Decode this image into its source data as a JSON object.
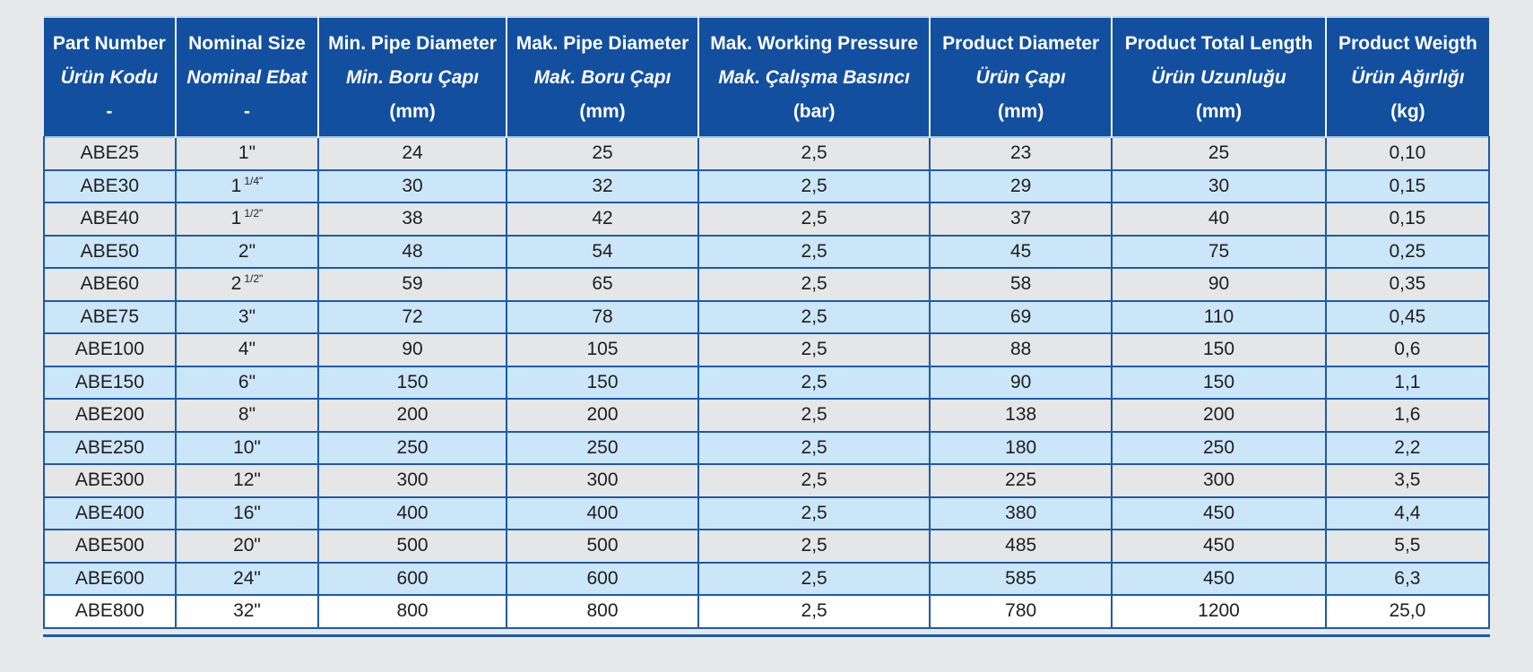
{
  "colors": {
    "page_background": "#e7e8ea",
    "header_background": "#134f9f",
    "header_text": "#ffffff",
    "cell_border": "#1d5aa9",
    "header_divider": "#eef4fb",
    "light_divider_under_header": "#9fc7ec",
    "row_gray": "#e5e6e8",
    "row_light_blue": "#cbe6f8",
    "row_white": "#ffffff",
    "body_text": "#1f1f1f"
  },
  "table": {
    "layout": {
      "col_widths_pct": [
        9.1,
        9.9,
        13.0,
        13.3,
        16.0,
        12.6,
        14.8,
        11.3
      ]
    },
    "header": {
      "columns": [
        {
          "en": "Part Number",
          "tr": "Ürün Kodu",
          "unit": "-"
        },
        {
          "en": "Nominal Size",
          "tr": "Nominal Ebat",
          "unit": "-"
        },
        {
          "en": "Min. Pipe Diameter",
          "tr": "Min. Boru Çapı",
          "unit": "(mm)"
        },
        {
          "en": "Mak. Pipe Diameter",
          "tr": "Mak. Boru Çapı",
          "unit": "(mm)"
        },
        {
          "en": "Mak. Working Pressure",
          "tr": "Mak. Çalışma Basıncı",
          "unit": "(bar)"
        },
        {
          "en": "Product Diameter",
          "tr": "Ürün Çapı",
          "unit": "(mm)"
        },
        {
          "en": "Product Total Length",
          "tr": "Ürün Uzunluğu",
          "unit": "(mm)"
        },
        {
          "en": "Product Weigth",
          "tr": "Ürün Ağırlığı",
          "unit": "(kg)"
        }
      ]
    },
    "rows": [
      {
        "part": "ABE25",
        "nominal": {
          "base": "1\"",
          "sup": ""
        },
        "min_d": "24",
        "max_d": "25",
        "pressure": "2,5",
        "prod_d": "23",
        "length": "25",
        "weight": "0,10",
        "bg": "gray"
      },
      {
        "part": "ABE30",
        "nominal": {
          "base": "1",
          "sup": "1/4\""
        },
        "min_d": "30",
        "max_d": "32",
        "pressure": "2,5",
        "prod_d": "29",
        "length": "30",
        "weight": "0,15",
        "bg": "blue"
      },
      {
        "part": "ABE40",
        "nominal": {
          "base": "1",
          "sup": "1/2\""
        },
        "min_d": "38",
        "max_d": "42",
        "pressure": "2,5",
        "prod_d": "37",
        "length": "40",
        "weight": "0,15",
        "bg": "gray"
      },
      {
        "part": "ABE50",
        "nominal": {
          "base": "2\"",
          "sup": ""
        },
        "min_d": "48",
        "max_d": "54",
        "pressure": "2,5",
        "prod_d": "45",
        "length": "75",
        "weight": "0,25",
        "bg": "blue"
      },
      {
        "part": "ABE60",
        "nominal": {
          "base": "2",
          "sup": "1/2\""
        },
        "min_d": "59",
        "max_d": "65",
        "pressure": "2,5",
        "prod_d": "58",
        "length": "90",
        "weight": "0,35",
        "bg": "gray"
      },
      {
        "part": "ABE75",
        "nominal": {
          "base": "3\"",
          "sup": ""
        },
        "min_d": "72",
        "max_d": "78",
        "pressure": "2,5",
        "prod_d": "69",
        "length": "110",
        "weight": "0,45",
        "bg": "blue"
      },
      {
        "part": "ABE100",
        "nominal": {
          "base": "4\"",
          "sup": ""
        },
        "min_d": "90",
        "max_d": "105",
        "pressure": "2,5",
        "prod_d": "88",
        "length": "150",
        "weight": "0,6",
        "bg": "gray"
      },
      {
        "part": "ABE150",
        "nominal": {
          "base": "6\"",
          "sup": ""
        },
        "min_d": "150",
        "max_d": "150",
        "pressure": "2,5",
        "prod_d": "90",
        "length": "150",
        "weight": "1,1",
        "bg": "blue"
      },
      {
        "part": "ABE200",
        "nominal": {
          "base": "8\"",
          "sup": ""
        },
        "min_d": "200",
        "max_d": "200",
        "pressure": "2,5",
        "prod_d": "138",
        "length": "200",
        "weight": "1,6",
        "bg": "gray"
      },
      {
        "part": "ABE250",
        "nominal": {
          "base": "10\"",
          "sup": ""
        },
        "min_d": "250",
        "max_d": "250",
        "pressure": "2,5",
        "prod_d": "180",
        "length": "250",
        "weight": "2,2",
        "bg": "blue"
      },
      {
        "part": "ABE300",
        "nominal": {
          "base": "12\"",
          "sup": ""
        },
        "min_d": "300",
        "max_d": "300",
        "pressure": "2,5",
        "prod_d": "225",
        "length": "300",
        "weight": "3,5",
        "bg": "gray"
      },
      {
        "part": "ABE400",
        "nominal": {
          "base": "16\"",
          "sup": ""
        },
        "min_d": "400",
        "max_d": "400",
        "pressure": "2,5",
        "prod_d": "380",
        "length": "450",
        "weight": "4,4",
        "bg": "blue"
      },
      {
        "part": "ABE500",
        "nominal": {
          "base": "20\"",
          "sup": ""
        },
        "min_d": "500",
        "max_d": "500",
        "pressure": "2,5",
        "prod_d": "485",
        "length": "450",
        "weight": "5,5",
        "bg": "gray"
      },
      {
        "part": "ABE600",
        "nominal": {
          "base": "24\"",
          "sup": ""
        },
        "min_d": "600",
        "max_d": "600",
        "pressure": "2,5",
        "prod_d": "585",
        "length": "450",
        "weight": "6,3",
        "bg": "blue"
      },
      {
        "part": "ABE800",
        "nominal": {
          "base": "32\"",
          "sup": ""
        },
        "min_d": "800",
        "max_d": "800",
        "pressure": "2,5",
        "prod_d": "780",
        "length": "1200",
        "weight": "25,0",
        "bg": "white"
      }
    ]
  }
}
